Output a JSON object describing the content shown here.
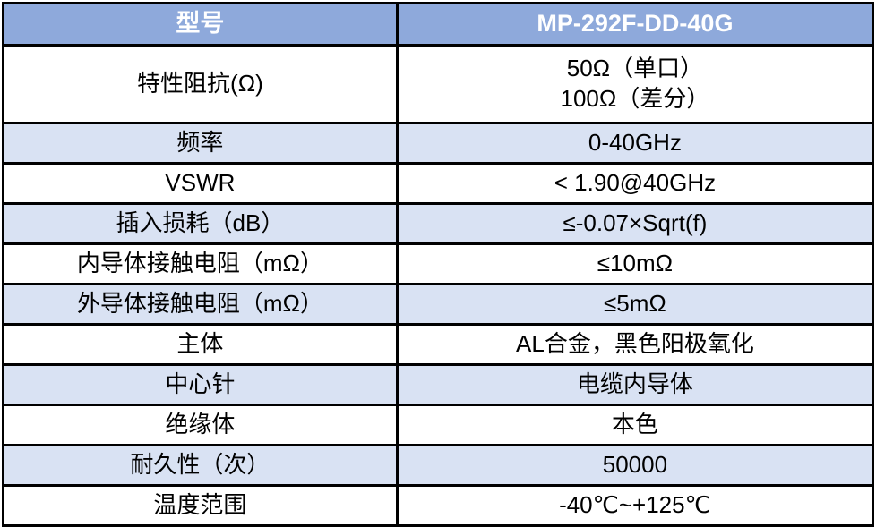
{
  "colors": {
    "header_bg": "#8EA9DB",
    "alt_row_bg": "#D9E2F3",
    "border": "#000000",
    "header_text": "#FFFFFF",
    "body_text": "#000000"
  },
  "table": {
    "header": {
      "param_label": "型号",
      "model_value": "MP-292F-DD-40G"
    },
    "rows": [
      {
        "param": "特性阻抗(Ω)",
        "value": "50Ω（单口）\n100Ω（差分）"
      },
      {
        "param": "频率",
        "value": "0-40GHz"
      },
      {
        "param": "VSWR",
        "value": "< 1.90@40GHz"
      },
      {
        "param": "插入损耗（dB）",
        "value": "≤-0.07×Sqrt(f)"
      },
      {
        "param": "内导体接触电阻（mΩ）",
        "value": "≤10mΩ"
      },
      {
        "param": "外导体接触电阻（mΩ）",
        "value": "≤5mΩ"
      },
      {
        "param": "主体",
        "value": "AL合金，黑色阳极氧化"
      },
      {
        "param": "中心针",
        "value": "电缆内导体"
      },
      {
        "param": "绝缘体",
        "value": "本色"
      },
      {
        "param": "耐久性（次）",
        "value": "50000"
      },
      {
        "param": "温度范围",
        "value": "-40℃~+125℃"
      }
    ]
  }
}
